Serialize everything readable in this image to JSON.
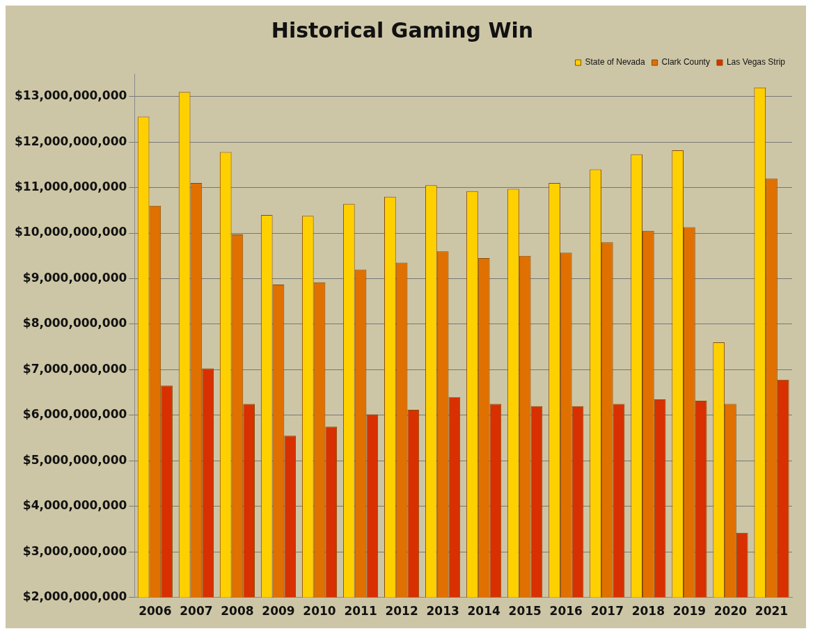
{
  "chart_data": {
    "type": "bar",
    "title": "Historical Gaming Win",
    "categories": [
      "2006",
      "2007",
      "2008",
      "2009",
      "2010",
      "2011",
      "2012",
      "2013",
      "2014",
      "2015",
      "2016",
      "2017",
      "2018",
      "2019",
      "2020",
      "2021"
    ],
    "series": [
      {
        "name": "State of Nevada",
        "color": "#ffd000",
        "values": [
          12560000000,
          13100000000,
          11780000000,
          10400000000,
          10380000000,
          10640000000,
          10800000000,
          11050000000,
          10920000000,
          10970000000,
          11100000000,
          11400000000,
          11730000000,
          11820000000,
          7600000000,
          13200000000
        ]
      },
      {
        "name": "Clark County",
        "color": "#e07000",
        "values": [
          10600000000,
          11100000000,
          9970000000,
          8870000000,
          8920000000,
          9200000000,
          9350000000,
          9600000000,
          9450000000,
          9500000000,
          9570000000,
          9800000000,
          10050000000,
          10130000000,
          6250000000,
          11200000000
        ]
      },
      {
        "name": "Las Vegas Strip",
        "color": "#d83000",
        "values": [
          6650000000,
          7030000000,
          6250000000,
          5550000000,
          5750000000,
          6020000000,
          6120000000,
          6400000000,
          6250000000,
          6200000000,
          6200000000,
          6250000000,
          6350000000,
          6320000000,
          3420000000,
          6780000000
        ]
      }
    ],
    "ylim": [
      2000000000,
      13500000000
    ],
    "yticks": [
      {
        "value": 2000000000,
        "label": "$2,000,000,000"
      },
      {
        "value": 3000000000,
        "label": "$3,000,000,000"
      },
      {
        "value": 4000000000,
        "label": "$4,000,000,000"
      },
      {
        "value": 5000000000,
        "label": "$5,000,000,000"
      },
      {
        "value": 6000000000,
        "label": "$6,000,000,000"
      },
      {
        "value": 7000000000,
        "label": "$7,000,000,000"
      },
      {
        "value": 8000000000,
        "label": "$8,000,000,000"
      },
      {
        "value": 9000000000,
        "label": "$9,000,000,000"
      },
      {
        "value": 10000000000,
        "label": "$10,000,000,000"
      },
      {
        "value": 11000000000,
        "label": "$11,000,000,000"
      },
      {
        "value": 12000000000,
        "label": "$12,000,000,000"
      },
      {
        "value": 13000000000,
        "label": "$13,000,000,000"
      }
    ],
    "grid": "y",
    "legend": "top right"
  }
}
